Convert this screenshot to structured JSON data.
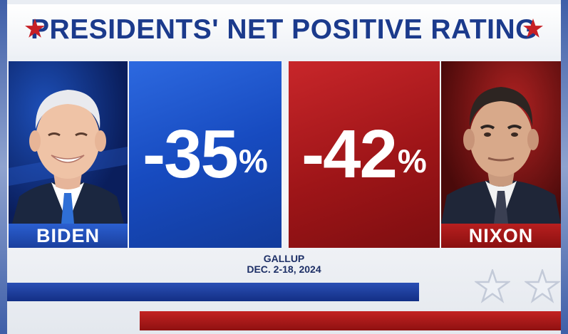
{
  "header": {
    "title": "PRESIDENTS' NET POSITIVE RATING",
    "star_color": "#c71f26",
    "title_color": "#1b3a8c"
  },
  "presidents": [
    {
      "name": "BIDEN",
      "value": "-35",
      "unit": "%",
      "color": "#1f55c8"
    },
    {
      "name": "NIXON",
      "value": "-42",
      "unit": "%",
      "color": "#a81a1d"
    }
  ],
  "source": {
    "line1": "GALLUP",
    "line2": "DEC. 2-18, 2024"
  },
  "decor": {
    "header_stars": "star-icon",
    "footer_stars": "star-outline-icon"
  }
}
